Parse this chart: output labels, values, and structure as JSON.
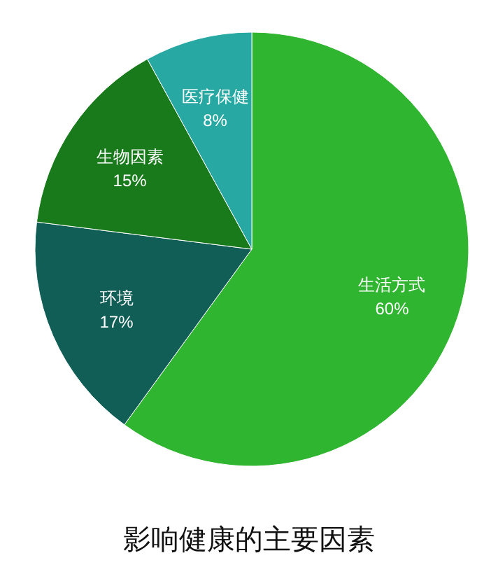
{
  "chart_data": {
    "type": "pie",
    "title": "影响健康的主要因素",
    "categories": [
      "生活方式",
      "环境",
      "生物因素",
      "医疗保健"
    ],
    "values": [
      60,
      17,
      15,
      8
    ],
    "colors": [
      "#2fb52f",
      "#115e57",
      "#197a1c",
      "#27a8a2"
    ],
    "value_labels": [
      "60%",
      "17%",
      "15%",
      "8%"
    ]
  }
}
